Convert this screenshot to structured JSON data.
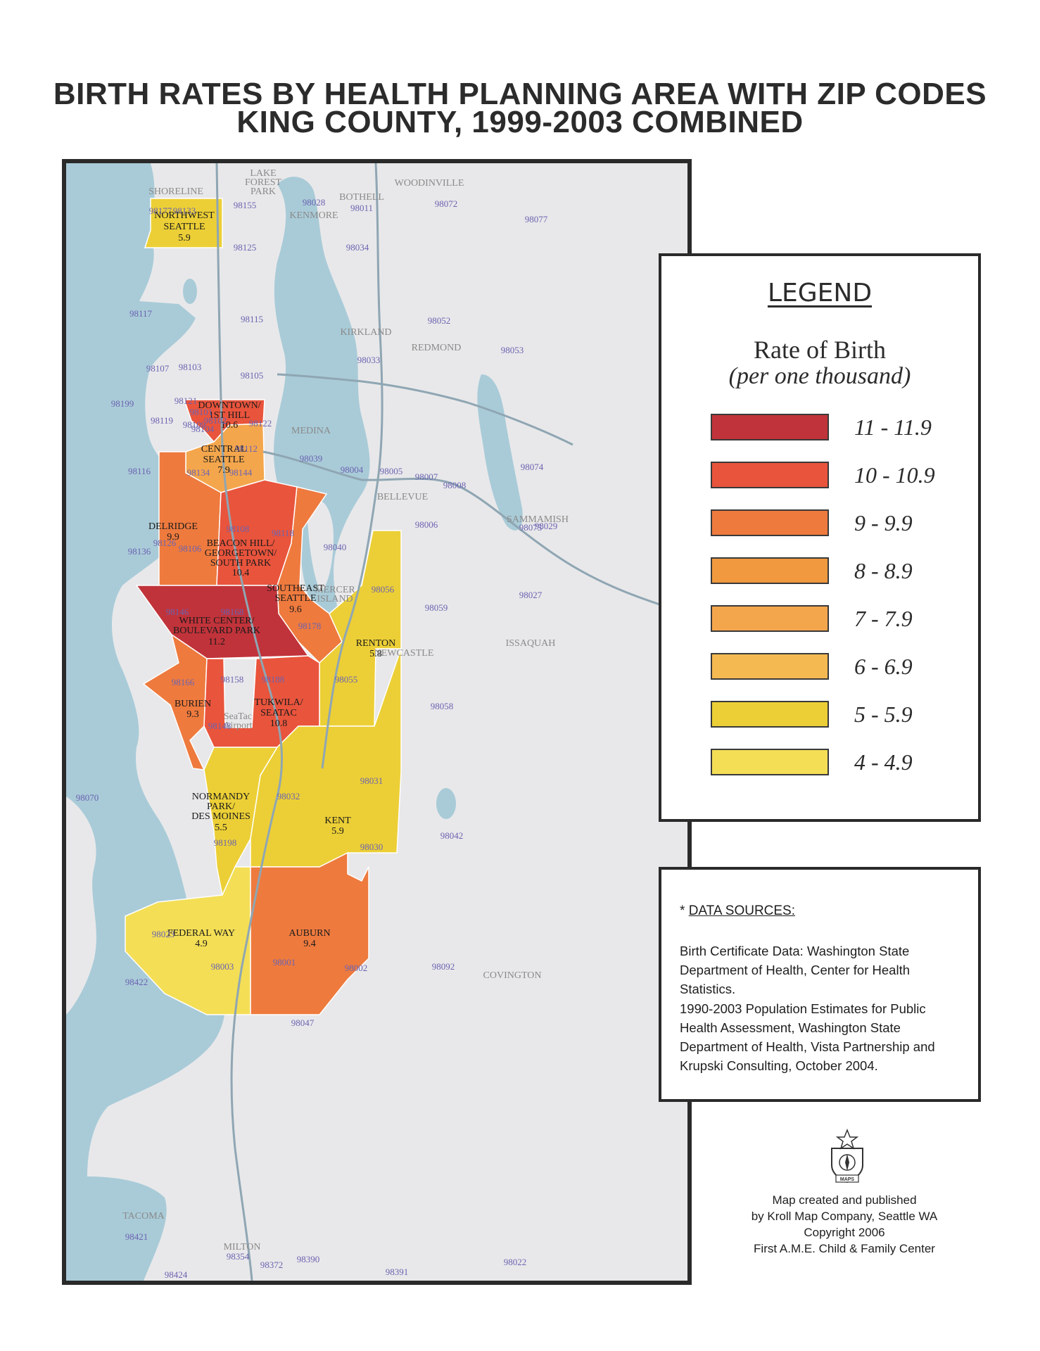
{
  "title": {
    "line1": "BIRTH RATES BY HEALTH PLANNING AREA WITH ZIP CODES",
    "line2": "KING COUNTY, 1999-2003 COMBINED"
  },
  "legend": {
    "heading": "LEGEND",
    "rate_title": "Rate of Birth",
    "rate_subtitle": "(per one thousand)",
    "classes": [
      {
        "range": "11 - 11.9",
        "color": "#c1333a"
      },
      {
        "range": "10 - 10.9",
        "color": "#e9543c"
      },
      {
        "range": "9 - 9.9",
        "color": "#ee7a3e"
      },
      {
        "range": "8 - 8.9",
        "color": "#f0993f"
      },
      {
        "range": "7 - 7.9",
        "color": "#f4a64c"
      },
      {
        "range": "6 - 6.9",
        "color": "#f5b952"
      },
      {
        "range": "5 - 5.9",
        "color": "#eccf36"
      },
      {
        "range": "4 - 4.9",
        "color": "#f3de56"
      }
    ]
  },
  "sources": {
    "heading_star": "* ",
    "heading": "DATA SOURCES:",
    "p1": "Birth Certificate Data: Washington State Department of Health, Center for Health Statistics.",
    "p2": "1990-2003 Population Estimates for Public Health Assessment, Washington State Department of Health, Vista Partnership and Krupski Consulting, October 2004."
  },
  "credits": {
    "line1": "Map created and published",
    "line2": "by Kroll Map Company, Seattle WA",
    "line3": "Copyright 2006",
    "line4": "First A.M.E. Child & Family Center",
    "emblem_text": "MAPS"
  },
  "map": {
    "colors": {
      "water": "#a9cbd8",
      "land": "#e8e8ea",
      "road": "#8fa6b3",
      "boundary": "#ffffff"
    },
    "areas": [
      {
        "name": "NORTHWEST SEATTLE",
        "rate": "5.9",
        "line1": "NORTHWEST",
        "line2": "SEATTLE"
      },
      {
        "name": "DOWNTOWN/1ST HILL",
        "rate": "10.6",
        "line1": "DOWNTOWN/",
        "line2": "1ST HILL"
      },
      {
        "name": "CENTRAL SEATTLE",
        "rate": "7.9",
        "line1": "CENTRAL",
        "line2": "SEATTLE"
      },
      {
        "name": "DELRIDGE",
        "rate": "9.9",
        "line1": "DELRIDGE"
      },
      {
        "name": "BEACON HILL/GEORGETOWN/SOUTH PARK",
        "rate": "10.4",
        "line1": "BEACON HILL/",
        "line2": "GEORGETOWN/",
        "line3": "SOUTH PARK"
      },
      {
        "name": "SOUTHEAST SEATTLE",
        "rate": "9.6",
        "line1": "SOUTHEAST",
        "line2": "SEATTLE"
      },
      {
        "name": "WHITE CENTER/BOULEVARD PARK",
        "rate": "11.2",
        "line1": "WHITE CENTER/",
        "line2": "BOULEVARD PARK"
      },
      {
        "name": "RENTON",
        "rate": "5.8",
        "line1": "RENTON"
      },
      {
        "name": "BURIEN",
        "rate": "9.3",
        "line1": "BURIEN"
      },
      {
        "name": "TUKWILA/SEATAC",
        "rate": "10.8",
        "line1": "TUKWILA/",
        "line2": "SEATAC"
      },
      {
        "name": "NORMANDY PARK/DES MOINES",
        "rate": "5.5",
        "line1": "NORMANDY",
        "line2": "PARK/",
        "line3": "DES MOINES"
      },
      {
        "name": "KENT",
        "rate": "5.9",
        "line1": "KENT"
      },
      {
        "name": "FEDERAL WAY",
        "rate": "4.9",
        "line1": "FEDERAL WAY"
      },
      {
        "name": "AUBURN",
        "rate": "9.4",
        "line1": "AUBURN"
      }
    ],
    "places": [
      "SHORELINE",
      "LAKE",
      "FOREST",
      "PARK",
      "KENMORE",
      "BOTHELL",
      "WOODINVILLE",
      "KIRKLAND",
      "REDMOND",
      "MEDINA",
      "BELLEVUE",
      "SAMMAMISH",
      "MERCER",
      "ISLAND",
      "NEWCASTLE",
      "ISSAQUAH",
      "COVINGTON",
      "TACOMA",
      "MILTON",
      "SeaTac",
      "Airport"
    ],
    "zips": [
      "98155",
      "98028",
      "98011",
      "98072",
      "98077",
      "98177",
      "98133",
      "98125",
      "98034",
      "98117",
      "98115",
      "98052",
      "98053",
      "98107",
      "98103",
      "98105",
      "98033",
      "98199",
      "98119",
      "98109",
      "98102",
      "98112",
      "98039",
      "98004",
      "98005",
      "98007",
      "98008",
      "98074",
      "98121",
      "98101",
      "98104",
      "98122",
      "98075",
      "98134",
      "98144",
      "98116",
      "98006",
      "98029",
      "98040",
      "98126",
      "98106",
      "98108",
      "98118",
      "98136",
      "98027",
      "98146",
      "98168",
      "98178",
      "98056",
      "98059",
      "98166",
      "98158",
      "98188",
      "98055",
      "98148",
      "98058",
      "98031",
      "98070",
      "98032",
      "98042",
      "98030",
      "98198",
      "98023",
      "98003",
      "98001",
      "98002",
      "98092",
      "98422",
      "98047",
      "98421",
      "98354",
      "98372",
      "98390",
      "98391",
      "98022",
      "98424"
    ]
  }
}
